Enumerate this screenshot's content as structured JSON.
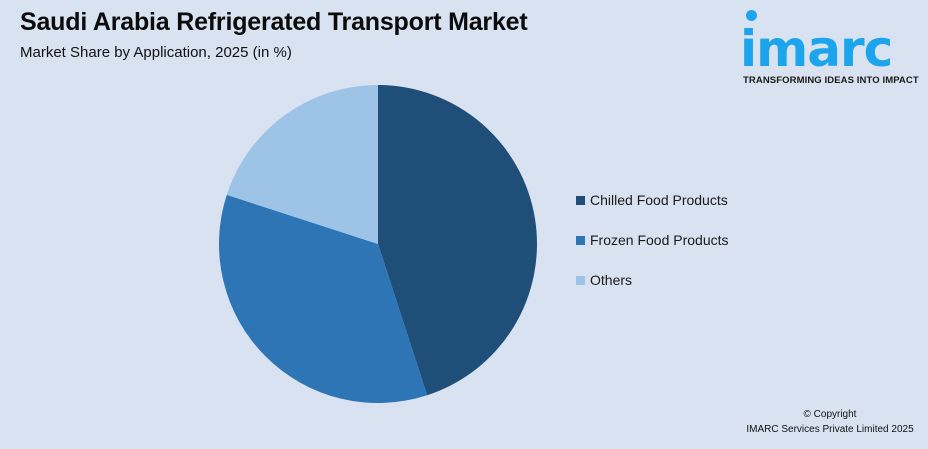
{
  "header": {
    "title": "Saudi Arabia Refrigerated Transport Market",
    "subtitle": "Market Share by Application, 2025 (in %)"
  },
  "logo": {
    "wordmark": "imarc",
    "tagline": "TRANSFORMING IDEAS INTO IMPACT",
    "color": "#1ca4ec"
  },
  "legend": {
    "items": [
      {
        "label": "Chilled Food Products",
        "color": "#1f4e79"
      },
      {
        "label": "Frozen Food Products",
        "color": "#2e75b6"
      },
      {
        "label": "Others",
        "color": "#9dc3e6"
      }
    ]
  },
  "footer": {
    "copyright_line1": "© Copyright",
    "copyright_line2": "IMARC Services Private Limited 2025"
  },
  "chart_data": {
    "type": "pie",
    "title": "Saudi Arabia Refrigerated Transport Market",
    "subtitle": "Market Share by Application, 2025 (in %)",
    "categories": [
      "Chilled Food Products",
      "Frozen Food Products",
      "Others"
    ],
    "values": [
      45,
      35,
      20
    ],
    "colors": [
      "#1f4e79",
      "#2e75b6",
      "#9dc3e6"
    ],
    "start_angle": "12 o'clock, clockwise",
    "legend_position": "right",
    "data_labels": false
  }
}
